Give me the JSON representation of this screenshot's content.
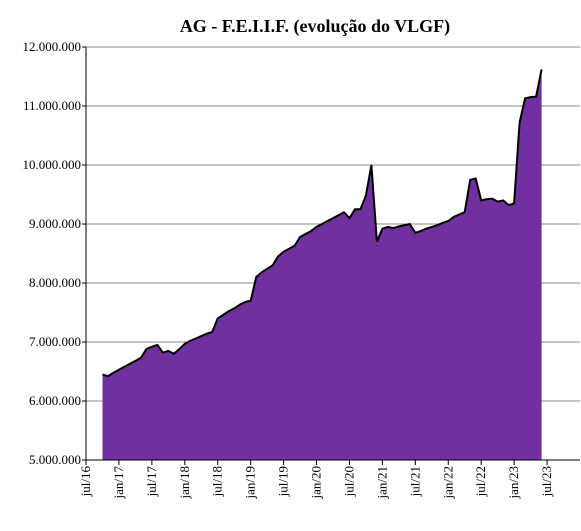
{
  "chart_data": {
    "type": "area",
    "title": "AG - F.E.I.I.F. (evolução do VLGF)",
    "x": [
      "2016-10",
      "2016-11",
      "2016-12",
      "2017-01",
      "2017-02",
      "2017-03",
      "2017-04",
      "2017-05",
      "2017-06",
      "2017-07",
      "2017-08",
      "2017-09",
      "2017-10",
      "2017-11",
      "2017-12",
      "2018-01",
      "2018-02",
      "2018-03",
      "2018-04",
      "2018-05",
      "2018-06",
      "2018-07",
      "2018-08",
      "2018-09",
      "2018-10",
      "2018-11",
      "2018-12",
      "2019-01",
      "2019-02",
      "2019-03",
      "2019-04",
      "2019-05",
      "2019-06",
      "2019-07",
      "2019-08",
      "2019-09",
      "2019-10",
      "2019-11",
      "2019-12",
      "2020-01",
      "2020-02",
      "2020-03",
      "2020-04",
      "2020-05",
      "2020-06",
      "2020-07",
      "2020-08",
      "2020-09",
      "2020-10",
      "2020-11",
      "2020-12",
      "2021-01",
      "2021-02",
      "2021-03",
      "2021-04",
      "2021-05",
      "2021-06",
      "2021-07",
      "2021-08",
      "2021-09",
      "2021-10",
      "2021-11",
      "2021-12",
      "2022-01",
      "2022-02",
      "2022-03",
      "2022-04",
      "2022-05",
      "2022-06",
      "2022-07",
      "2022-08",
      "2022-09",
      "2022-10",
      "2022-11",
      "2022-12",
      "2023-01",
      "2023-02",
      "2023-03",
      "2023-04",
      "2023-05",
      "2023-06"
    ],
    "values": [
      6450000,
      6420000,
      6480000,
      6530000,
      6580000,
      6630000,
      6680000,
      6730000,
      6880000,
      6920000,
      6950000,
      6820000,
      6850000,
      6800000,
      6880000,
      6970000,
      7020000,
      7060000,
      7100000,
      7140000,
      7170000,
      7400000,
      7460000,
      7520000,
      7570000,
      7630000,
      7680000,
      7700000,
      8100000,
      8180000,
      8240000,
      8300000,
      8450000,
      8530000,
      8580000,
      8630000,
      8780000,
      8830000,
      8880000,
      8950000,
      9000000,
      9050000,
      9100000,
      9150000,
      9200000,
      9100000,
      9250000,
      9250000,
      9480000,
      10000000,
      8700000,
      8920000,
      8950000,
      8930000,
      8960000,
      8980000,
      9000000,
      8850000,
      8880000,
      8920000,
      8950000,
      8980000,
      9020000,
      9050000,
      9120000,
      9160000,
      9200000,
      9750000,
      9770000,
      9400000,
      9420000,
      9430000,
      9380000,
      9400000,
      9320000,
      9350000,
      10720000,
      11130000,
      11150000,
      11160000,
      11620000
    ],
    "color": "#7030a0",
    "xlim": [
      "2016-07",
      "2024-01"
    ],
    "xticks": [
      {
        "value": "2016-07",
        "label": "jul/16"
      },
      {
        "value": "2017-01",
        "label": "jan/17"
      },
      {
        "value": "2017-07",
        "label": "jul/17"
      },
      {
        "value": "2018-01",
        "label": "jan/18"
      },
      {
        "value": "2018-07",
        "label": "jul/18"
      },
      {
        "value": "2019-01",
        "label": "jan/19"
      },
      {
        "value": "2019-07",
        "label": "jul/19"
      },
      {
        "value": "2020-01",
        "label": "jan/20"
      },
      {
        "value": "2020-07",
        "label": "jul/20"
      },
      {
        "value": "2021-01",
        "label": "jan/21"
      },
      {
        "value": "2021-07",
        "label": "jul/21"
      },
      {
        "value": "2022-01",
        "label": "jan/22"
      },
      {
        "value": "2022-07",
        "label": "jul/22"
      },
      {
        "value": "2023-01",
        "label": "jan/23"
      },
      {
        "value": "2023-07",
        "label": "jul/23"
      }
    ],
    "ylim": [
      5000000,
      12000000
    ],
    "yticks": [
      {
        "value": 5000000,
        "label": "5.000.000"
      },
      {
        "value": 6000000,
        "label": "6.000.000"
      },
      {
        "value": 7000000,
        "label": "7.000.000"
      },
      {
        "value": 8000000,
        "label": "8.000.000"
      },
      {
        "value": 9000000,
        "label": "9.000.000"
      },
      {
        "value": 10000000,
        "label": "10.000.000"
      },
      {
        "value": 11000000,
        "label": "11.000.000"
      },
      {
        "value": 12000000,
        "label": "12.000.000"
      }
    ],
    "grid": true
  }
}
